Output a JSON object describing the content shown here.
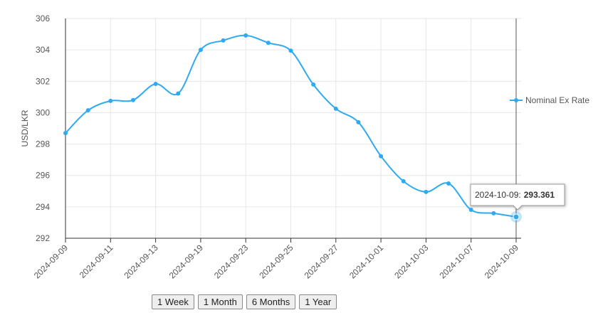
{
  "chart_data": {
    "type": "line",
    "y_label": "USD/LKR",
    "categories": [
      "2024-09-09",
      null,
      "2024-09-11",
      null,
      "2024-09-13",
      null,
      "2024-09-19",
      null,
      "2024-09-23",
      null,
      "2024-09-25",
      null,
      "2024-09-27",
      null,
      "2024-10-01",
      null,
      "2024-10-03",
      null,
      "2024-10-07",
      null,
      "2024-10-09"
    ],
    "series": [
      {
        "name": "Nominal Ex Rate",
        "color": "#2eaaf0",
        "values": [
          298.7,
          300.15,
          300.75,
          300.8,
          301.83,
          301.22,
          304.0,
          304.6,
          304.92,
          304.45,
          303.95,
          301.79,
          300.25,
          299.39,
          297.23,
          295.63,
          294.95,
          295.49,
          293.81,
          293.59,
          293.361
        ]
      }
    ],
    "ylim": [
      292,
      306
    ],
    "yticks": [
      292,
      294,
      296,
      298,
      300,
      302,
      304,
      306
    ],
    "grid": true,
    "legend": "right",
    "tooltip": {
      "label": "2024-10-09:",
      "index": 20
    }
  },
  "range_buttons": [
    "1 Week",
    "1 Month",
    "6 Months",
    "1 Year"
  ]
}
